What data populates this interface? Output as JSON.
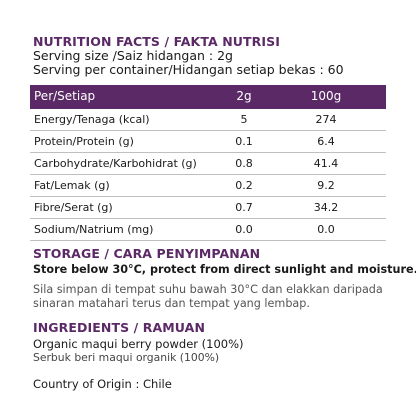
{
  "nutrition": {
    "title": "NUTRITION FACTS / FAKTA NUTRISI",
    "serving_size": "Serving size /Saiz hidangan : 2g",
    "servings_per_container": "Serving per container/Hidangan setiap bekas : 60",
    "table": {
      "headers": [
        "Per/Setiap",
        "2g",
        "100g"
      ],
      "rows": [
        {
          "name": "Energy/Tenaga (kcal)",
          "per_2g": "5",
          "per_100g": "274"
        },
        {
          "name": "Protein/Protein (g)",
          "per_2g": "0.1",
          "per_100g": "6.4"
        },
        {
          "name": "Carbohydrate/Karbohidrat (g)",
          "per_2g": "0.8",
          "per_100g": "41.4"
        },
        {
          "name": "Fat/Lemak (g)",
          "per_2g": "0.2",
          "per_100g": "9.2"
        },
        {
          "name": "Fibre/Serat (g)",
          "per_2g": "0.7",
          "per_100g": "34.2"
        },
        {
          "name": "Sodium/Natrium (mg)",
          "per_2g": "0.0",
          "per_100g": "0.0"
        }
      ]
    }
  },
  "storage": {
    "title": "STORAGE / CARA PENYIMPANAN",
    "english": "Store below 30°C, protect from direct sunlight and moisture.",
    "malay_line1": "Sila simpan di tempat suhu bawah 30°C dan elakkan daripada",
    "malay_line2": "sinaran matahari terus dan tempat yang lembap."
  },
  "ingredients": {
    "title": "INGREDIENTS / RAMUAN",
    "english": "Organic maqui berry powder (100%)",
    "malay": "Serbuk beri maqui organik (100%)"
  },
  "origin": "Country of Origin :  Chile",
  "colors": {
    "accent": "#5b2a66",
    "divider": "#bfbfbf"
  }
}
